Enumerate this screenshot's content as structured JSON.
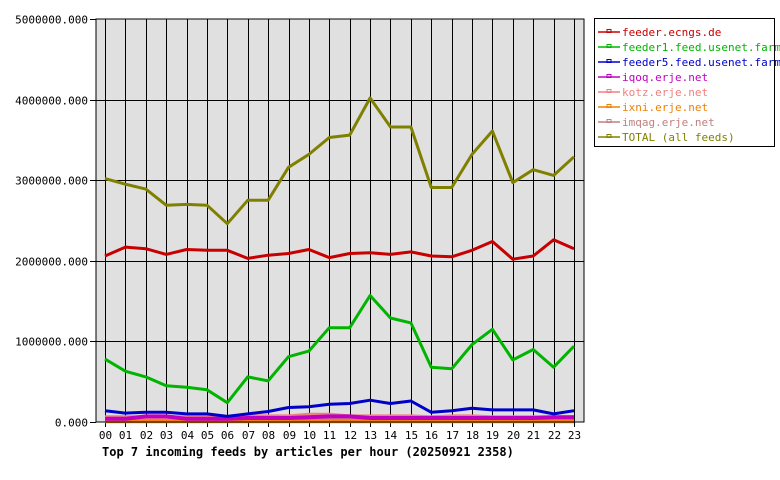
{
  "chart_data": {
    "type": "line",
    "title": "Top 7 incoming feeds by articles per hour (20250921 2358)",
    "xlabel": "",
    "ylabel": "",
    "ylim": [
      0,
      5000000
    ],
    "yticks": [
      "0.000",
      "1000000.000",
      "2000000.000",
      "3000000.000",
      "4000000.000",
      "5000000.000"
    ],
    "grid": true,
    "legend_position": "right",
    "categories": [
      "00",
      "01",
      "02",
      "03",
      "04",
      "05",
      "06",
      "07",
      "08",
      "09",
      "10",
      "11",
      "12",
      "13",
      "14",
      "15",
      "16",
      "17",
      "18",
      "19",
      "20",
      "21",
      "22",
      "23"
    ],
    "series": [
      {
        "name": "feeder.ecngs.de",
        "color": "#c80000",
        "values": [
          2060000,
          2170000,
          2150000,
          2080000,
          2140000,
          2130000,
          2130000,
          2030000,
          2070000,
          2090000,
          2140000,
          2040000,
          2090000,
          2100000,
          2080000,
          2110000,
          2060000,
          2050000,
          2130000,
          2240000,
          2020000,
          2060000,
          2260000,
          2150000
        ]
      },
      {
        "name": "feeder1.feed.usenet.farm",
        "color": "#00b400",
        "values": [
          780000,
          630000,
          560000,
          450000,
          430000,
          400000,
          240000,
          560000,
          510000,
          810000,
          880000,
          1170000,
          1170000,
          1570000,
          1290000,
          1230000,
          680000,
          660000,
          960000,
          1150000,
          770000,
          900000,
          680000,
          940000
        ]
      },
      {
        "name": "feeder5.feed.usenet.farm",
        "color": "#0000c8",
        "values": [
          140000,
          110000,
          120000,
          120000,
          100000,
          100000,
          70000,
          100000,
          130000,
          180000,
          190000,
          220000,
          230000,
          270000,
          230000,
          260000,
          120000,
          140000,
          170000,
          150000,
          150000,
          150000,
          100000,
          140000
        ]
      },
      {
        "name": "iqoq.erje.net",
        "color": "#c000c0",
        "values": [
          40000,
          40000,
          70000,
          70000,
          40000,
          40000,
          40000,
          50000,
          50000,
          50000,
          60000,
          70000,
          70000,
          50000,
          50000,
          50000,
          50000,
          50000,
          50000,
          50000,
          50000,
          50000,
          60000,
          60000
        ]
      },
      {
        "name": "kotz.erje.net",
        "color": "#f08080",
        "values": [
          60000,
          60000,
          60000,
          60000,
          60000,
          60000,
          60000,
          70000,
          70000,
          70000,
          90000,
          90000,
          70000,
          70000,
          70000,
          70000,
          60000,
          70000,
          70000,
          60000,
          60000,
          60000,
          60000,
          60000
        ]
      },
      {
        "name": "ixni.erje.net",
        "color": "#f08000",
        "values": [
          10000,
          10000,
          10000,
          10000,
          10000,
          10000,
          10000,
          10000,
          10000,
          10000,
          10000,
          10000,
          10000,
          10000,
          10000,
          10000,
          10000,
          10000,
          10000,
          10000,
          10000,
          10000,
          10000,
          10000
        ]
      },
      {
        "name": "imqag.erje.net",
        "color": "#c08080",
        "values": [
          40000,
          40000,
          40000,
          40000,
          40000,
          40000,
          40000,
          40000,
          40000,
          40000,
          40000,
          40000,
          40000,
          40000,
          40000,
          40000,
          40000,
          40000,
          40000,
          40000,
          40000,
          40000,
          40000,
          40000
        ]
      },
      {
        "name": "TOTAL (all feeds)",
        "color": "#808000",
        "values": [
          3020000,
          2950000,
          2890000,
          2690000,
          2700000,
          2690000,
          2460000,
          2750000,
          2750000,
          3160000,
          3320000,
          3530000,
          3560000,
          4020000,
          3660000,
          3660000,
          2910000,
          2910000,
          3320000,
          3610000,
          2970000,
          3130000,
          3060000,
          3290000
        ]
      }
    ]
  }
}
